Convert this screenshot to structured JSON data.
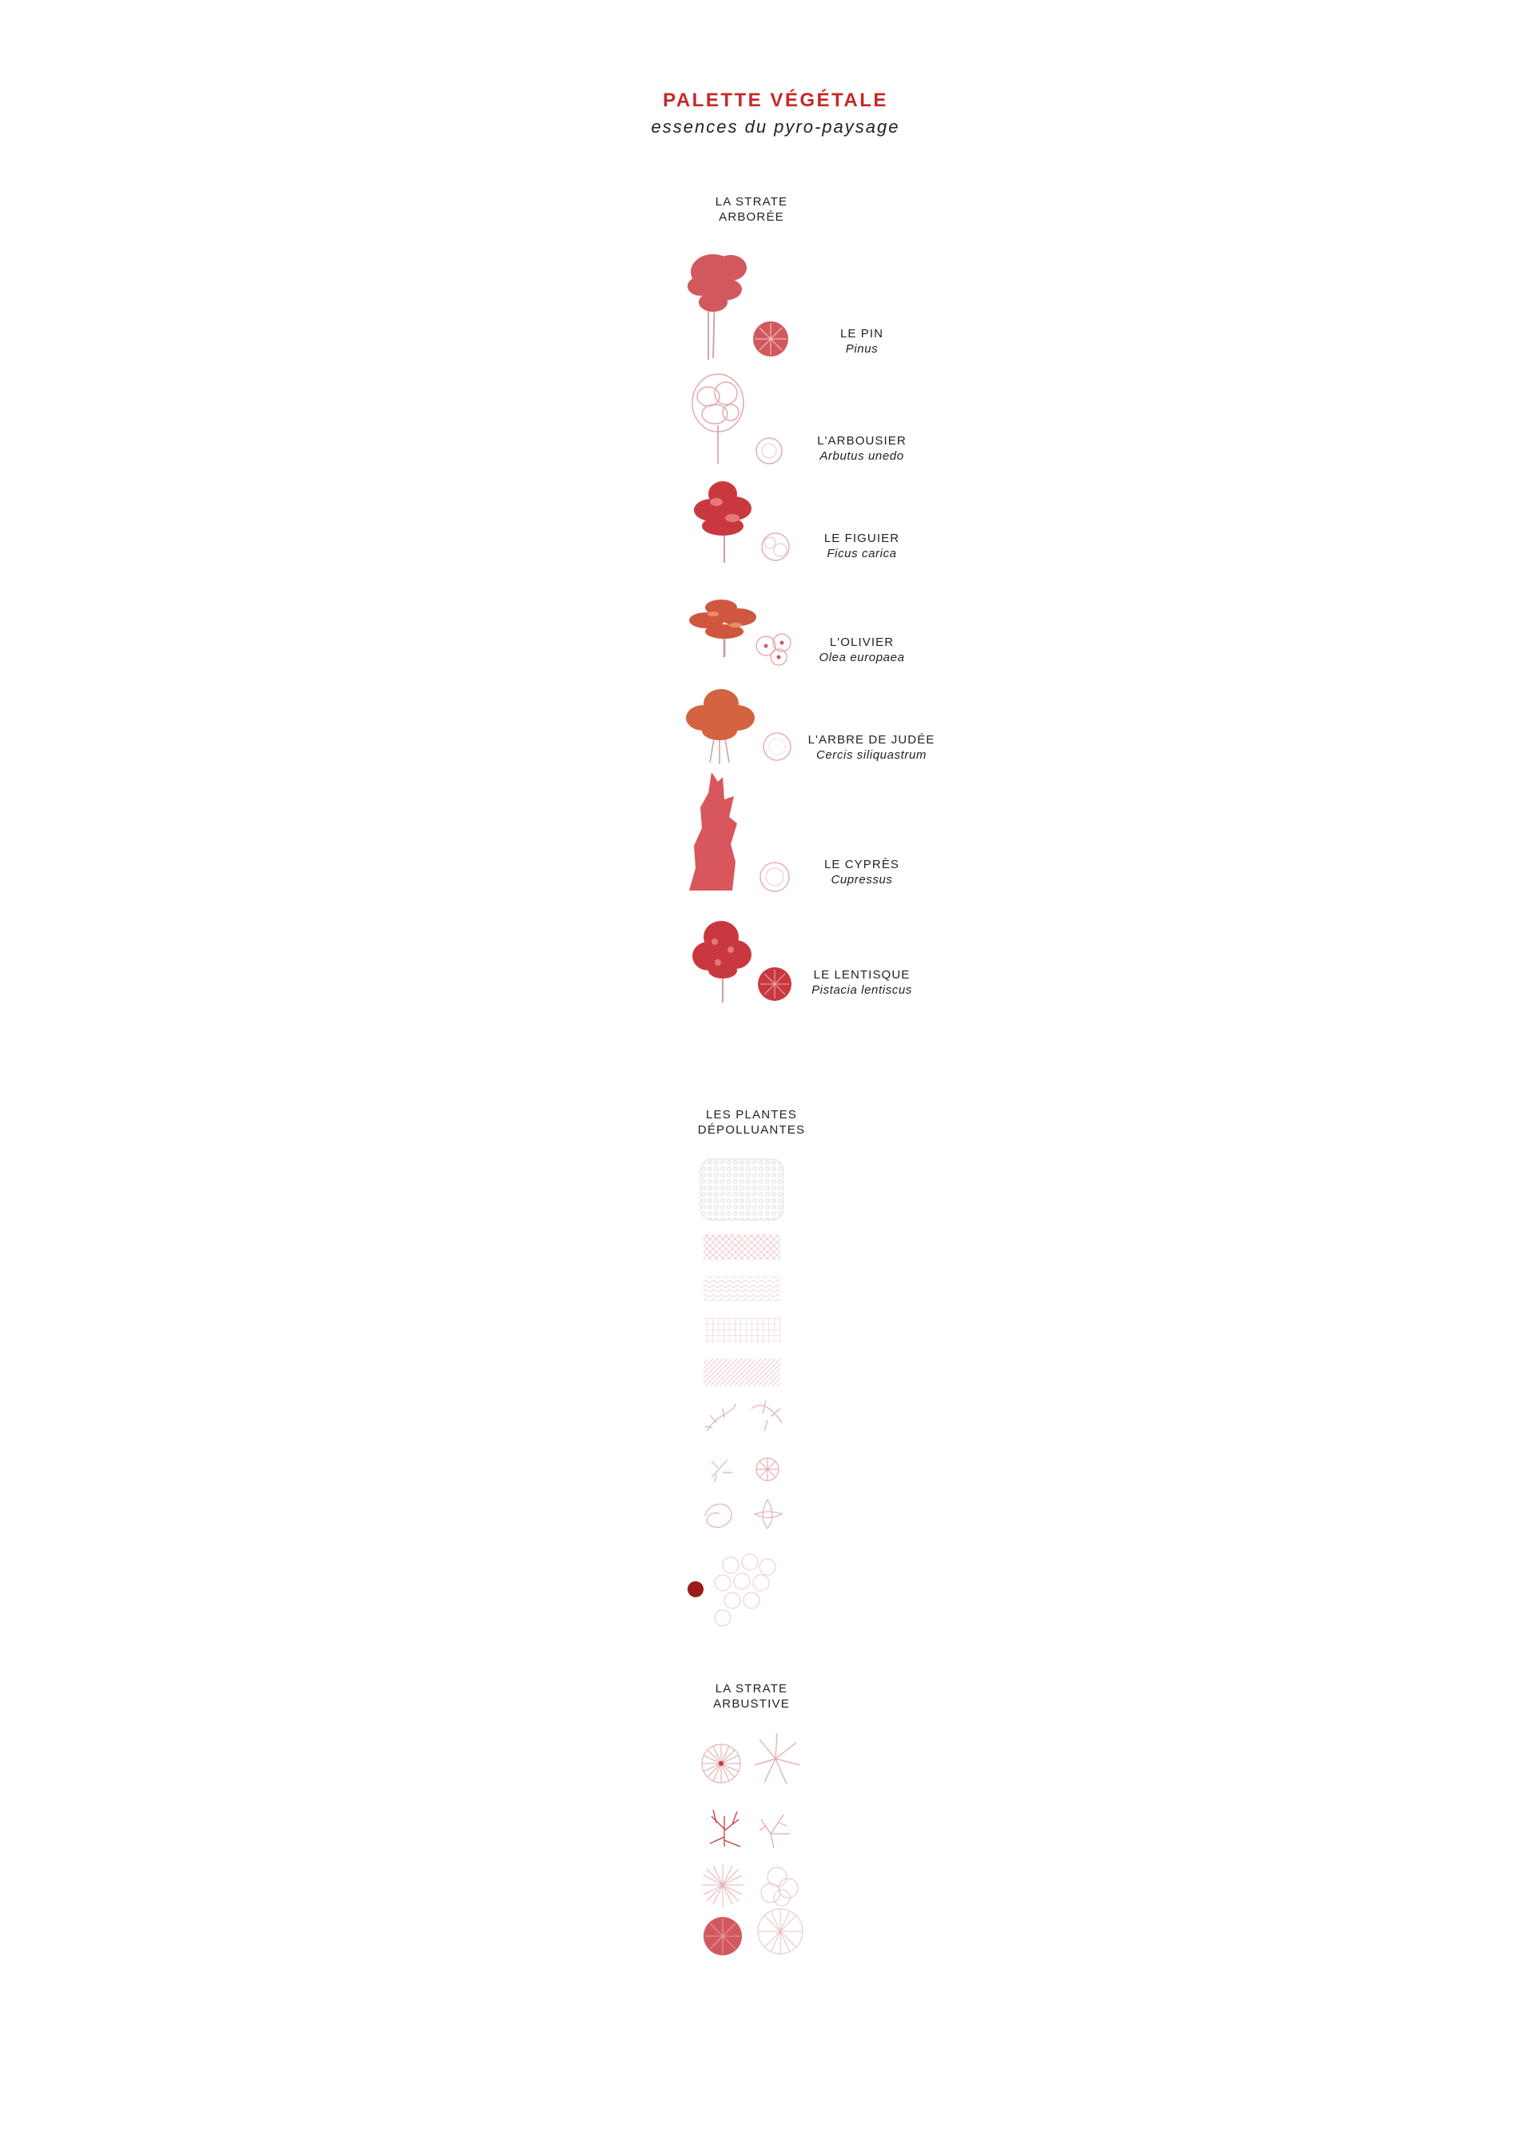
{
  "header": {
    "title": "PALETTE VÉGÉTALE",
    "subtitle": "essences du pyro-paysage"
  },
  "sections": [
    {
      "line1": "LA STRATE",
      "line2": "ARBORÉE"
    },
    {
      "line1": "LES PLANTES",
      "line2": "DÉPOLLUANTES"
    },
    {
      "line1": "LA STRATE",
      "line2": "ARBUSTIVE"
    }
  ],
  "trees": [
    {
      "common": "LE PIN",
      "latin": "Pinus",
      "color": "#d2585f"
    },
    {
      "common": "L'ARBOUSIER",
      "latin": "Arbutus unedo",
      "color": "#e6a9ae"
    },
    {
      "common": "LE FIGUIER",
      "latin": "Ficus carica",
      "color": "#c9383f"
    },
    {
      "common": "L'OLIVIER",
      "latin": "Olea europaea",
      "color": "#d0573f"
    },
    {
      "common": "L'ARBRE DE JUDÉE",
      "latin": "Cercis siliquastrum",
      "color": "#d4643f"
    },
    {
      "common": "LE CYPRÈS",
      "latin": "Cupressus",
      "color": "#d7575c"
    },
    {
      "common": "LE LENTISQUE",
      "latin": "Pistacia lentiscus",
      "color": "#c9383f"
    }
  ],
  "colors": {
    "accent": "#c62828",
    "dot": "#9b1b1b",
    "line": "#e2b0b4"
  }
}
